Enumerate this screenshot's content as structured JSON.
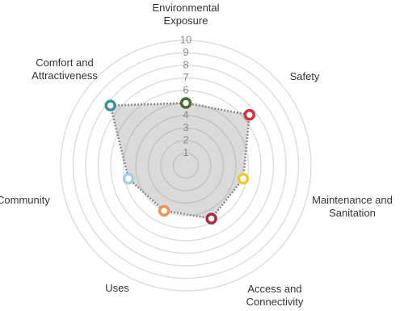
{
  "chart_data": {
    "type": "radar",
    "categories": [
      "Environmental Exposure",
      "Safety",
      "Maintenance and Sanitation",
      "Access and Connectivity",
      "Uses",
      "Community",
      "Comfort and Attractiveness"
    ],
    "values": [
      5,
      6.5,
      4.7,
      4.7,
      4,
      4.7,
      7.7
    ],
    "colors": [
      "#4b6b34",
      "#cc3340",
      "#f0c93a",
      "#a32f42",
      "#e8935a",
      "#a8d0dc",
      "#3a9490"
    ],
    "rlim": [
      0,
      10
    ],
    "rticks": [
      1,
      2,
      3,
      4,
      5,
      6,
      7,
      8,
      9,
      10
    ],
    "grid": true
  }
}
